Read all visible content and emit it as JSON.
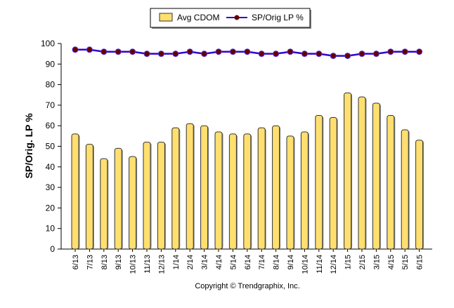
{
  "chart_data": {
    "type": "bar",
    "title": "",
    "ylabel": "SP/Orig. LP %",
    "xlabel": "",
    "ylim": [
      0,
      100
    ],
    "yticks": [
      0,
      10,
      20,
      30,
      40,
      50,
      60,
      70,
      80,
      90,
      100
    ],
    "grid": false,
    "legend_placement": "top",
    "categories": [
      "6/13",
      "7/13",
      "8/13",
      "9/13",
      "10/13",
      "11/13",
      "12/13",
      "1/14",
      "2/14",
      "3/14",
      "4/14",
      "5/14",
      "6/14",
      "7/14",
      "8/14",
      "9/14",
      "10/14",
      "11/14",
      "12/14",
      "1/15",
      "2/15",
      "3/15",
      "4/15",
      "5/15",
      "6/15"
    ],
    "series": [
      {
        "name": "Avg CDOM",
        "type": "bar",
        "color": "#FFDF6F",
        "values": [
          56,
          51,
          44,
          49,
          45,
          52,
          52,
          59,
          61,
          60,
          57,
          56,
          56,
          59,
          60,
          55,
          57,
          65,
          64,
          76,
          74,
          71,
          65,
          58,
          53
        ]
      },
      {
        "name": "SP/Orig LP %",
        "type": "line",
        "color": "#3300CC",
        "marker_color": "#660000",
        "values": [
          97,
          97,
          96,
          96,
          96,
          95,
          95,
          95,
          96,
          95,
          96,
          96,
          96,
          95,
          95,
          96,
          95,
          95,
          94,
          94,
          95,
          95,
          96,
          96,
          96
        ]
      }
    ]
  },
  "footer": {
    "copyright": "Copyright © Trendgraphix, Inc."
  }
}
